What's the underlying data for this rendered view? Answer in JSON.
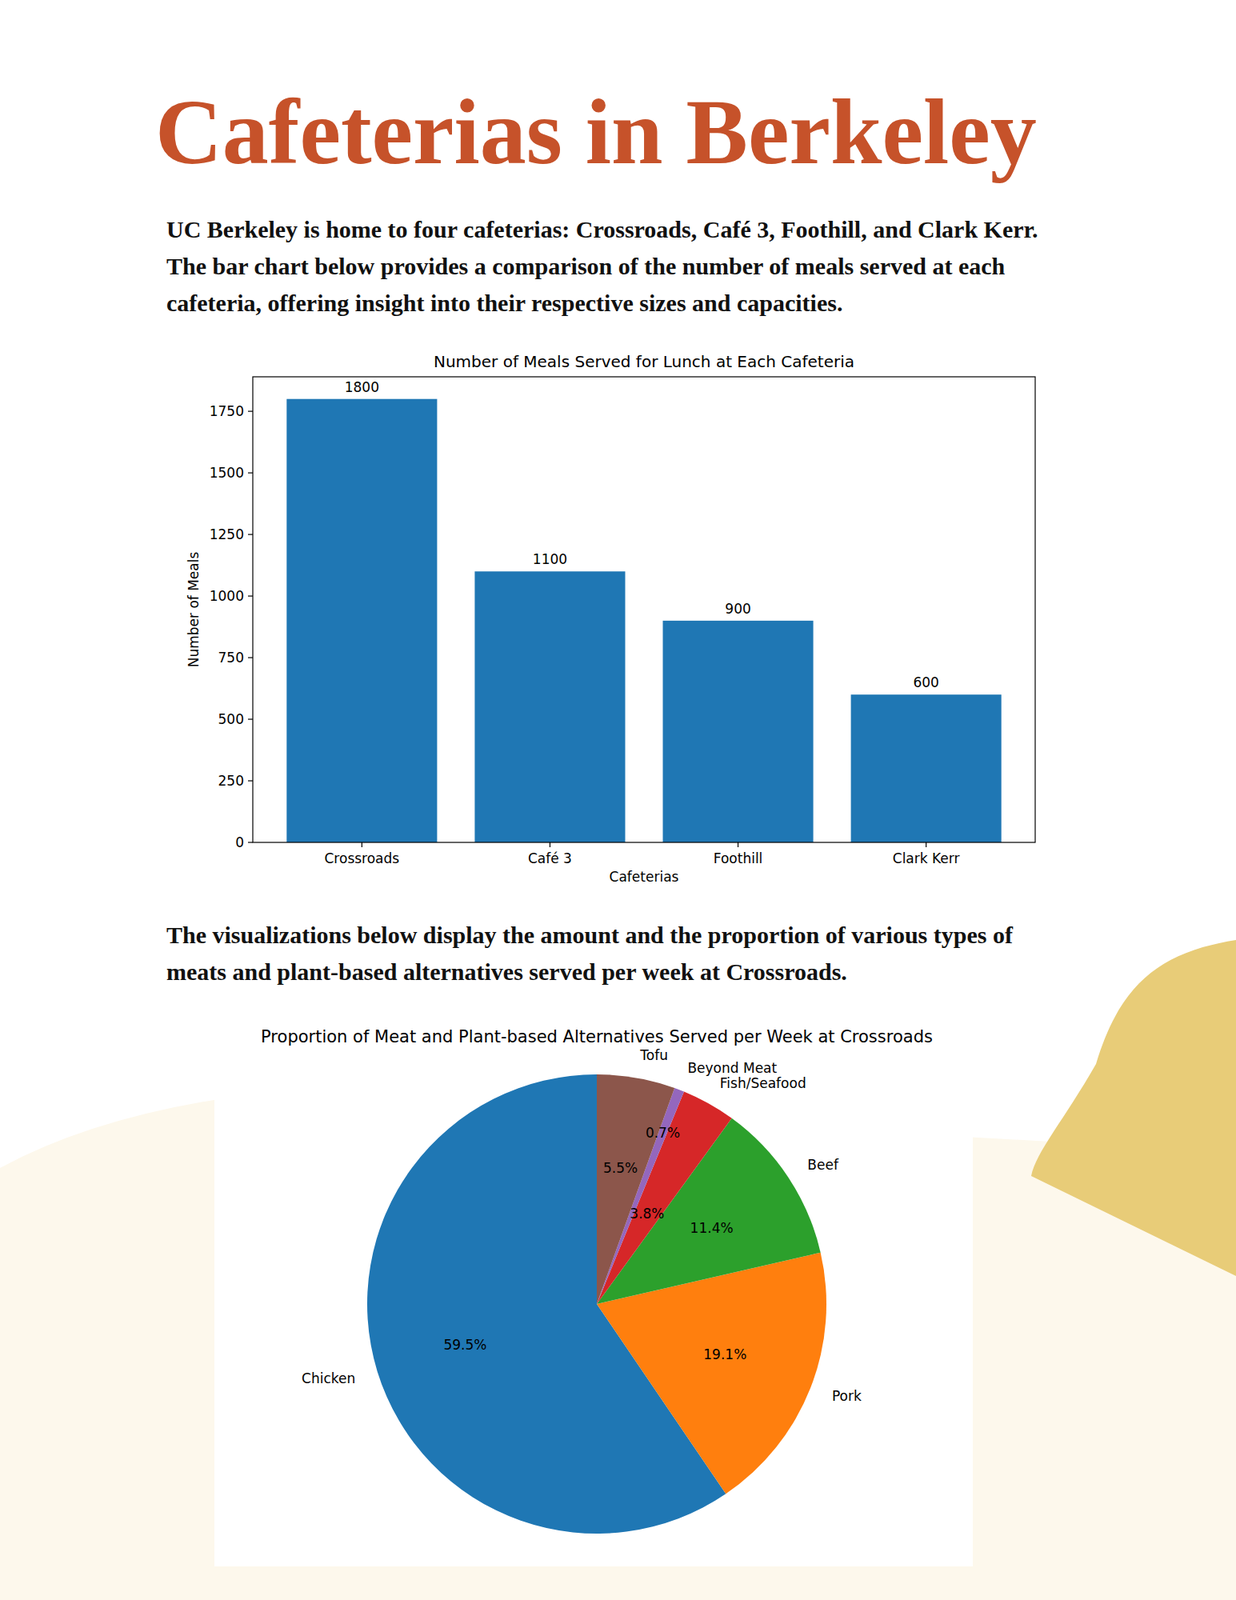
{
  "document": {
    "title": "Cafeterias in Berkeley",
    "paragraphs": [
      "UC Berkeley is home to four cafeterias: Crossroads, Café 3, Foothill, and Clark Kerr. The bar chart below provides a comparison of the number of meals served at each cafeteria, offering insight into their respective sizes and capacities.",
      "The visualizations below display the amount and the proportion of various types of meats and plant-based alternatives served per week at Crossroads."
    ]
  },
  "chart_data": [
    {
      "type": "bar",
      "title": "Number of Meals Served for Lunch at Each Cafeteria",
      "xlabel": "Cafeterias",
      "ylabel": "Number of Meals",
      "categories": [
        "Crossroads",
        "Café 3",
        "Foothill",
        "Clark Kerr"
      ],
      "values": [
        1800,
        1100,
        900,
        600
      ],
      "color": "#1f77b4",
      "ylim": [
        0,
        1890
      ],
      "yticks": [
        0,
        250,
        500,
        750,
        1000,
        1250,
        1500,
        1750
      ],
      "data_labels": true
    },
    {
      "type": "pie",
      "title": "Proportion of Meat and Plant-based Alternatives Served per Week at Crossroads",
      "categories": [
        "Chicken",
        "Pork",
        "Beef",
        "Fish/Seafood",
        "Beyond Meat",
        "Tofu"
      ],
      "values": [
        59.5,
        19.1,
        11.4,
        3.8,
        0.7,
        5.5
      ],
      "value_labels": [
        "59.5%",
        "19.1%",
        "11.4%",
        "3.8%",
        "0.7%",
        "5.5%"
      ],
      "colors": [
        "#1f77b4",
        "#ff7f0e",
        "#2ca02c",
        "#d62728",
        "#9467bd",
        "#8c564b"
      ],
      "data_labels": true
    }
  ]
}
